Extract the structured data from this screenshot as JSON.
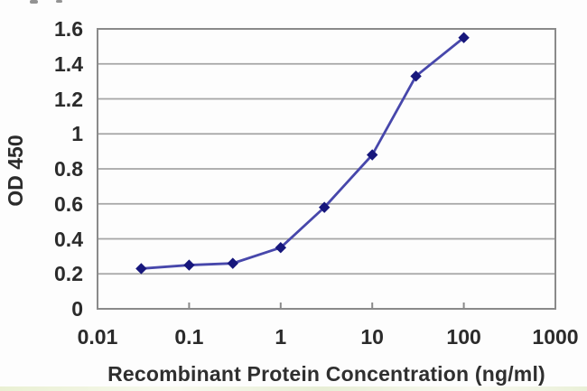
{
  "chart_data": {
    "type": "line",
    "x": [
      0.03,
      0.1,
      0.3,
      1,
      3,
      10,
      30,
      100
    ],
    "y": [
      0.23,
      0.25,
      0.26,
      0.35,
      0.58,
      0.88,
      1.33,
      1.55
    ],
    "xlabel": "Recombinant Protein Concentration (ng/ml)",
    "ylabel": "OD 450",
    "x_scale": "log",
    "xlim": [
      0.01,
      1000
    ],
    "ylim": [
      0,
      1.6
    ],
    "x_tick_values": [
      0.01,
      0.1,
      1,
      10,
      100,
      1000
    ],
    "x_tick_labels": [
      "0.01",
      "0.1",
      "1",
      "10",
      "100",
      "1000"
    ],
    "y_tick_values": [
      0,
      0.2,
      0.4,
      0.6,
      0.8,
      1,
      1.2,
      1.4,
      1.6
    ],
    "y_tick_labels": [
      "0",
      "0.2",
      "0.4",
      "0.6",
      "0.8",
      "1",
      "1.2",
      "1.4",
      "1.6"
    ],
    "grid": "horizontal",
    "legend": "none",
    "marker": "diamond",
    "colors": {
      "line": "#4747ab",
      "marker": "#17177c",
      "grid": "#a5a5a5",
      "plot_border": "#8a8a8a",
      "text": "#2b2b2b",
      "plot_background": "#fdfdfd"
    }
  }
}
